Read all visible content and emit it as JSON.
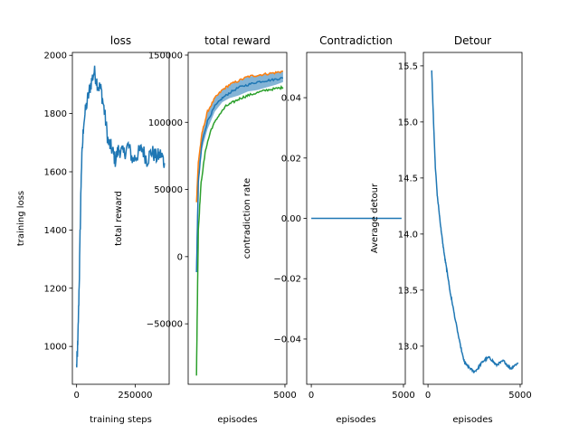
{
  "chart_data": [
    {
      "type": "line",
      "title": "loss",
      "xlabel": "training steps",
      "ylabel": "training loss",
      "xlim": [
        -18000,
        395000
      ],
      "ylim": [
        870,
        2010
      ],
      "xticks": [
        0,
        250000
      ],
      "xtick_labels": [
        "0",
        "250000"
      ],
      "yticks": [
        1000,
        1200,
        1400,
        1600,
        1800,
        2000
      ],
      "ytick_labels": [
        "1000",
        "1200",
        "1400",
        "1600",
        "1800",
        "2000"
      ],
      "series": [
        {
          "color": "#1f77b4",
          "noise": 28,
          "x": [
            0,
            5000,
            12000,
            20000,
            30000,
            45000,
            60000,
            75000,
            90000,
            105000,
            120000,
            135000,
            150000,
            165000,
            180000,
            200000,
            220000,
            240000,
            260000,
            280000,
            300000,
            320000,
            340000,
            360000,
            375000
          ],
          "y": [
            930,
            1000,
            1250,
            1600,
            1770,
            1840,
            1900,
            1945,
            1900,
            1880,
            1800,
            1700,
            1680,
            1640,
            1680,
            1660,
            1690,
            1640,
            1660,
            1680,
            1640,
            1670,
            1650,
            1660,
            1630
          ]
        }
      ]
    },
    {
      "type": "line",
      "title": "total reward",
      "xlabel": "episodes",
      "ylabel": "total reward",
      "xlim": [
        -250,
        5100
      ],
      "ylim": [
        -95000,
        152000
      ],
      "xticks": [
        5000
      ],
      "xtick_labels": [
        "5000"
      ],
      "yticks": [
        -50000,
        0,
        50000,
        100000,
        150000
      ],
      "ytick_labels": [
        "−50000",
        "0",
        "50000",
        "100000",
        "150000"
      ],
      "band": {
        "color": "#1f77b4",
        "x": [
          200,
          300,
          500,
          800,
          1200,
          1600,
          2000,
          2500,
          3000,
          3500,
          4000,
          4500,
          4900
        ],
        "lower": [
          40000,
          60000,
          80000,
          95000,
          108000,
          115000,
          118000,
          120000,
          123000,
          124000,
          126000,
          128000,
          130000
        ],
        "upper": [
          40000,
          70000,
          92000,
          108000,
          118000,
          124000,
          128000,
          131000,
          134000,
          135000,
          136000,
          137000,
          138000
        ]
      },
      "series": [
        {
          "color": "#ff7f0e",
          "noise": 900,
          "x": [
            200,
            300,
            500,
            800,
            1200,
            1600,
            2000,
            2500,
            3000,
            3500,
            4000,
            4500,
            4900
          ],
          "y": [
            40000,
            70000,
            92000,
            108000,
            118000,
            124000,
            128000,
            131000,
            134000,
            135000,
            136000,
            137000,
            138000
          ]
        },
        {
          "color": "#1f77b4",
          "noise": 800,
          "x": [
            200,
            300,
            500,
            800,
            1200,
            1600,
            2000,
            2500,
            3000,
            3500,
            4000,
            4500,
            4900
          ],
          "y": [
            -12000,
            55000,
            85000,
            101000,
            112000,
            118000,
            122000,
            126000,
            128000,
            130000,
            131000,
            132000,
            133000
          ]
        },
        {
          "color": "#2ca02c",
          "noise": 900,
          "x": [
            200,
            300,
            450,
            700,
            1000,
            1400,
            1800,
            2200,
            2600,
            3000,
            3500,
            4000,
            4500,
            4900
          ],
          "y": [
            -88000,
            20000,
            55000,
            80000,
            95000,
            105000,
            112000,
            115000,
            118000,
            120000,
            122000,
            124000,
            125000,
            126000
          ]
        }
      ]
    },
    {
      "type": "line",
      "title": "Contradiction",
      "xlabel": "episodes",
      "ylabel": "contradiction rate",
      "xlim": [
        -250,
        5100
      ],
      "ylim": [
        -0.055,
        0.055
      ],
      "xticks": [
        0,
        5000
      ],
      "xtick_labels": [
        "0",
        "5000"
      ],
      "yticks": [
        -0.04,
        -0.02,
        0.0,
        0.02,
        0.04
      ],
      "ytick_labels": [
        "−0.04",
        "−0.02",
        "0.00",
        "0.02",
        "0.04"
      ],
      "series": [
        {
          "color": "#1f77b4",
          "noise": 0,
          "x": [
            0,
            4900
          ],
          "y": [
            0,
            0
          ]
        }
      ]
    },
    {
      "type": "line",
      "title": "Detour",
      "xlabel": "episodes",
      "ylabel": "Average detour",
      "xlim": [
        -250,
        5100
      ],
      "ylim": [
        12.66,
        15.62
      ],
      "xticks": [
        0,
        5000
      ],
      "xtick_labels": [
        "0",
        "5000"
      ],
      "yticks": [
        13.0,
        13.5,
        14.0,
        14.5,
        15.0,
        15.5
      ],
      "ytick_labels": [
        "13.0",
        "13.5",
        "14.0",
        "14.5",
        "15.0",
        "15.5"
      ],
      "series": [
        {
          "color": "#1f77b4",
          "noise": 0.01,
          "x": [
            200,
            300,
            400,
            500,
            600,
            700,
            800,
            900,
            1000,
            1100,
            1200,
            1300,
            1500,
            1700,
            1900,
            2000,
            2100,
            2300,
            2500,
            2700,
            2900,
            3100,
            3300,
            3500,
            3700,
            3900,
            4100,
            4300,
            4500,
            4700,
            4900
          ],
          "y": [
            15.47,
            15.0,
            14.6,
            14.35,
            14.2,
            14.05,
            13.92,
            13.8,
            13.7,
            13.6,
            13.48,
            13.4,
            13.22,
            13.05,
            12.9,
            12.85,
            12.83,
            12.8,
            12.77,
            12.8,
            12.85,
            12.88,
            12.9,
            12.87,
            12.83,
            12.85,
            12.87,
            12.83,
            12.8,
            12.83,
            12.85
          ]
        }
      ]
    }
  ]
}
